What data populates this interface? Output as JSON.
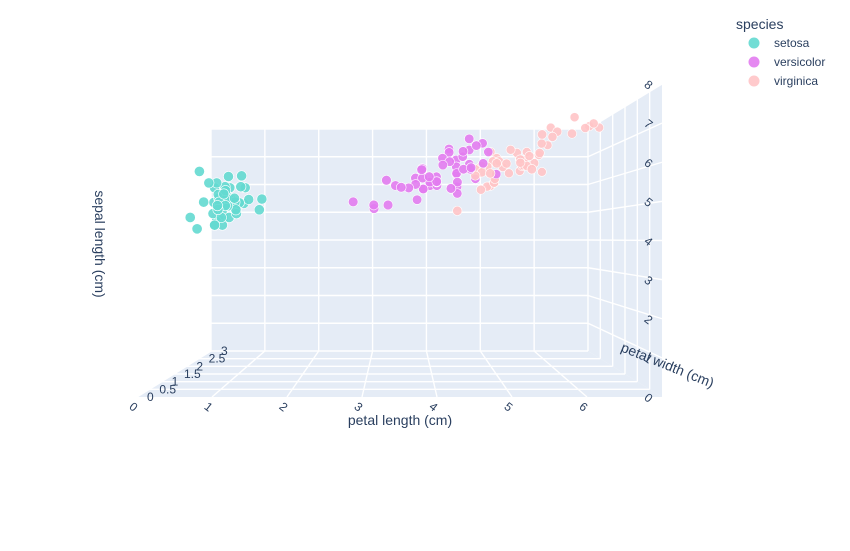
{
  "chart_data": {
    "type": "scatter3d",
    "legend": {
      "title": "species",
      "placement": "top-right",
      "entries": [
        {
          "name": "setosa",
          "color": "#63d9d0"
        },
        {
          "name": "versicolor",
          "color": "#e27cf0"
        },
        {
          "name": "virginica",
          "color": "#ffc4c7"
        }
      ]
    },
    "axes": {
      "x": {
        "title": "petal length (cm)",
        "range": [
          7,
          0
        ],
        "ticks": [
          "6",
          "5",
          "4",
          "3",
          "2",
          "1",
          "0"
        ]
      },
      "y": {
        "title": "petal width (cm)",
        "range": [
          3,
          0
        ],
        "ticks": [
          "0",
          "0.5",
          "1",
          "1.5",
          "2",
          "2.5",
          "3"
        ]
      },
      "z": {
        "title": "sepal length (cm)",
        "range": [
          0,
          8
        ],
        "ticks": [
          "0",
          "1",
          "2",
          "3",
          "4",
          "5",
          "6",
          "7",
          "8"
        ]
      }
    },
    "grid": true,
    "series": [
      {
        "name": "setosa",
        "color": "#63d9d0",
        "points": [
          [
            1.4,
            0.2,
            5.1
          ],
          [
            1.4,
            0.2,
            4.9
          ],
          [
            1.3,
            0.2,
            4.7
          ],
          [
            1.5,
            0.2,
            4.6
          ],
          [
            1.4,
            0.2,
            5.0
          ],
          [
            1.7,
            0.4,
            5.4
          ],
          [
            1.4,
            0.3,
            4.6
          ],
          [
            1.5,
            0.2,
            5.0
          ],
          [
            1.4,
            0.2,
            4.4
          ],
          [
            1.5,
            0.1,
            4.9
          ],
          [
            1.5,
            0.2,
            5.4
          ],
          [
            1.6,
            0.2,
            4.8
          ],
          [
            1.4,
            0.1,
            4.8
          ],
          [
            1.1,
            0.1,
            4.3
          ],
          [
            1.2,
            0.2,
            5.8
          ],
          [
            1.5,
            0.4,
            5.7
          ],
          [
            1.3,
            0.4,
            5.4
          ],
          [
            1.4,
            0.3,
            5.1
          ],
          [
            1.7,
            0.3,
            5.7
          ],
          [
            1.5,
            0.3,
            5.1
          ],
          [
            1.7,
            0.2,
            5.4
          ],
          [
            1.5,
            0.4,
            5.1
          ],
          [
            1.0,
            0.2,
            4.6
          ],
          [
            1.7,
            0.5,
            5.1
          ],
          [
            1.9,
            0.2,
            4.8
          ],
          [
            1.6,
            0.2,
            5.0
          ],
          [
            1.6,
            0.4,
            5.0
          ],
          [
            1.5,
            0.2,
            5.2
          ],
          [
            1.4,
            0.2,
            5.2
          ],
          [
            1.6,
            0.2,
            4.7
          ],
          [
            1.6,
            0.2,
            4.8
          ],
          [
            1.5,
            0.4,
            5.4
          ],
          [
            1.5,
            0.1,
            5.2
          ],
          [
            1.4,
            0.2,
            5.5
          ],
          [
            1.5,
            0.2,
            4.9
          ],
          [
            1.2,
            0.2,
            5.0
          ],
          [
            1.3,
            0.2,
            5.5
          ],
          [
            1.4,
            0.1,
            4.9
          ],
          [
            1.3,
            0.2,
            4.4
          ],
          [
            1.5,
            0.2,
            5.1
          ],
          [
            1.3,
            0.3,
            5.0
          ],
          [
            1.3,
            0.3,
            4.5
          ],
          [
            1.3,
            0.2,
            4.4
          ],
          [
            1.6,
            0.6,
            5.0
          ],
          [
            1.9,
            0.4,
            5.1
          ],
          [
            1.4,
            0.3,
            4.8
          ],
          [
            1.6,
            0.2,
            5.1
          ],
          [
            1.4,
            0.2,
            4.6
          ],
          [
            1.5,
            0.2,
            5.3
          ],
          [
            1.4,
            0.2,
            5.0
          ]
        ]
      },
      {
        "name": "versicolor",
        "color": "#e27cf0",
        "points": [
          [
            4.7,
            1.4,
            7.0
          ],
          [
            4.5,
            1.5,
            6.4
          ],
          [
            4.9,
            1.5,
            6.9
          ],
          [
            4.0,
            1.3,
            5.5
          ],
          [
            4.6,
            1.5,
            6.5
          ],
          [
            4.5,
            1.3,
            5.7
          ],
          [
            4.7,
            1.6,
            6.3
          ],
          [
            3.3,
            1.0,
            4.9
          ],
          [
            4.6,
            1.3,
            6.6
          ],
          [
            3.9,
            1.4,
            5.2
          ],
          [
            3.5,
            1.0,
            5.0
          ],
          [
            4.2,
            1.5,
            5.9
          ],
          [
            4.0,
            1.0,
            6.0
          ],
          [
            4.7,
            1.4,
            6.1
          ],
          [
            3.6,
            1.3,
            5.6
          ],
          [
            4.4,
            1.4,
            6.7
          ],
          [
            4.5,
            1.5,
            5.6
          ],
          [
            4.1,
            1.0,
            5.8
          ],
          [
            4.5,
            1.5,
            6.2
          ],
          [
            3.9,
            1.1,
            5.6
          ],
          [
            4.8,
            1.8,
            5.9
          ],
          [
            4.0,
            1.3,
            6.1
          ],
          [
            4.9,
            1.5,
            6.3
          ],
          [
            4.7,
            1.2,
            6.1
          ],
          [
            4.3,
            1.3,
            6.4
          ],
          [
            4.4,
            1.4,
            6.6
          ],
          [
            4.8,
            1.4,
            6.8
          ],
          [
            5.0,
            1.7,
            6.7
          ],
          [
            4.5,
            1.5,
            6.0
          ],
          [
            3.5,
            1.0,
            5.7
          ],
          [
            3.8,
            1.1,
            5.5
          ],
          [
            3.7,
            1.0,
            5.5
          ],
          [
            3.9,
            1.2,
            5.8
          ],
          [
            5.1,
            1.6,
            6.0
          ],
          [
            4.5,
            1.5,
            5.4
          ],
          [
            4.5,
            1.6,
            6.0
          ],
          [
            4.7,
            1.5,
            6.7
          ],
          [
            4.4,
            1.3,
            6.3
          ],
          [
            4.1,
            1.3,
            5.6
          ],
          [
            4.0,
            1.3,
            5.5
          ],
          [
            4.4,
            1.2,
            5.5
          ],
          [
            4.6,
            1.4,
            6.1
          ],
          [
            4.0,
            1.2,
            5.8
          ],
          [
            3.3,
            1.0,
            5.0
          ],
          [
            4.2,
            1.3,
            5.6
          ],
          [
            4.2,
            1.2,
            5.7
          ],
          [
            4.2,
            1.3,
            5.7
          ],
          [
            4.3,
            1.3,
            6.2
          ],
          [
            3.0,
            1.1,
            5.1
          ],
          [
            4.1,
            1.3,
            5.7
          ]
        ]
      },
      {
        "name": "virginica",
        "color": "#ffc4c7",
        "points": [
          [
            6.0,
            2.5,
            6.3
          ],
          [
            5.1,
            1.9,
            5.8
          ],
          [
            5.9,
            2.1,
            7.1
          ],
          [
            5.6,
            1.8,
            6.3
          ],
          [
            5.8,
            2.2,
            6.5
          ],
          [
            6.6,
            2.1,
            7.6
          ],
          [
            4.5,
            1.7,
            4.9
          ],
          [
            6.3,
            1.8,
            7.3
          ],
          [
            5.8,
            1.8,
            6.7
          ],
          [
            6.1,
            2.5,
            7.2
          ],
          [
            5.1,
            2.0,
            6.5
          ],
          [
            5.3,
            1.9,
            6.4
          ],
          [
            5.5,
            2.1,
            6.8
          ],
          [
            5.0,
            2.0,
            5.7
          ],
          [
            5.1,
            2.4,
            5.8
          ],
          [
            5.3,
            2.3,
            6.4
          ],
          [
            5.5,
            1.8,
            6.5
          ],
          [
            6.7,
            2.2,
            7.7
          ],
          [
            6.9,
            2.3,
            7.7
          ],
          [
            5.0,
            1.5,
            6.0
          ],
          [
            5.7,
            2.3,
            6.9
          ],
          [
            4.9,
            2.0,
            5.6
          ],
          [
            6.7,
            2.0,
            7.7
          ],
          [
            4.9,
            1.8,
            6.3
          ],
          [
            5.7,
            2.1,
            6.7
          ],
          [
            6.0,
            1.8,
            7.2
          ],
          [
            4.8,
            1.8,
            6.2
          ],
          [
            4.9,
            1.8,
            6.1
          ],
          [
            5.6,
            2.1,
            6.4
          ],
          [
            5.8,
            1.6,
            7.2
          ],
          [
            6.1,
            1.9,
            7.4
          ],
          [
            6.4,
            2.0,
            7.9
          ],
          [
            5.6,
            2.2,
            6.4
          ],
          [
            5.1,
            1.5,
            6.3
          ],
          [
            5.6,
            1.4,
            6.1
          ],
          [
            6.1,
            2.3,
            7.7
          ],
          [
            5.6,
            2.4,
            6.3
          ],
          [
            5.5,
            1.8,
            6.4
          ],
          [
            4.8,
            1.8,
            6.0
          ],
          [
            5.4,
            2.1,
            6.9
          ],
          [
            5.6,
            2.4,
            6.7
          ],
          [
            5.1,
            2.3,
            6.9
          ],
          [
            5.1,
            1.9,
            5.8
          ],
          [
            5.9,
            2.3,
            6.8
          ],
          [
            5.7,
            2.5,
            6.7
          ],
          [
            5.2,
            2.3,
            6.7
          ],
          [
            5.0,
            1.9,
            6.3
          ],
          [
            5.2,
            2.0,
            6.5
          ],
          [
            5.4,
            2.3,
            6.2
          ],
          [
            5.1,
            1.8,
            5.9
          ]
        ]
      }
    ]
  }
}
